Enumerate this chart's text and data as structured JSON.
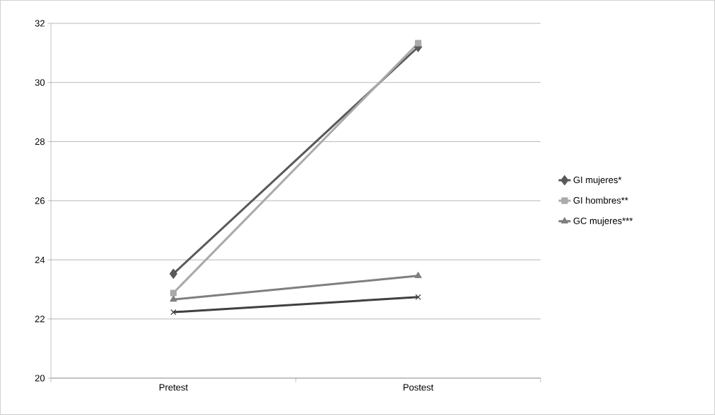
{
  "chart_data": {
    "type": "line",
    "categories": [
      "Pretest",
      "Postest"
    ],
    "series": [
      {
        "name": "GI mujeres*",
        "color": "#595959",
        "marker": "diamond",
        "values": [
          23.53,
          31.2
        ]
      },
      {
        "name": "GI hombres**",
        "color": "#aaaaaa",
        "marker": "square",
        "values": [
          22.88,
          31.33
        ]
      },
      {
        "name": "GC mujeres***",
        "color": "#7f7f7f",
        "marker": "triangle",
        "values": [
          22.66,
          23.46
        ]
      },
      {
        "color": "#404040",
        "marker": "cross",
        "values": [
          22.23,
          22.74
        ]
      }
    ],
    "ylim": [
      20,
      32
    ],
    "yticks": [
      20,
      22,
      24,
      26,
      28,
      30,
      32
    ],
    "grid": "y",
    "legend": "right",
    "line_style": "solid"
  }
}
